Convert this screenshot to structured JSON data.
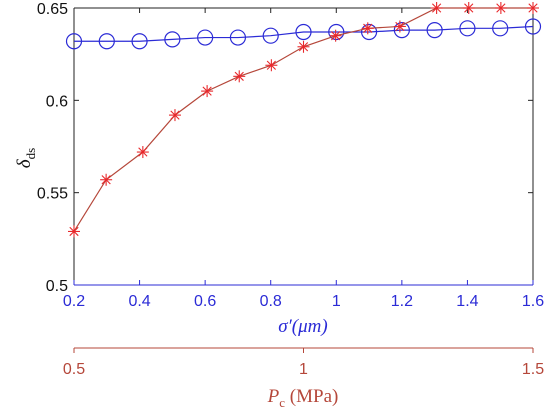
{
  "chart_data": {
    "type": "line",
    "ylabel_symbol": "δ",
    "ylabel_subscript": "ds",
    "xlabel_primary": "σ′(μm)",
    "xlabel_secondary_symbol": "P",
    "xlabel_secondary_subscript": "c",
    "xlabel_secondary_unit": " (MPa)",
    "xlim": [
      0.2,
      1.6
    ],
    "ylim": [
      0.5,
      0.65
    ],
    "x2lim": [
      0.5,
      1.5
    ],
    "xticks": [
      "0.2",
      "0.4",
      "0.6",
      "0.8",
      "1",
      "1.2",
      "1.4",
      "1.6"
    ],
    "yticks": [
      "0.5",
      "0.55",
      "0.6",
      "0.65"
    ],
    "x2ticks": [
      "0.5",
      "1",
      "1.5"
    ],
    "colors": {
      "blue": "#2b2bd6",
      "red": "#b5473a",
      "star": "#e8282b",
      "axis": "#222222"
    },
    "series": [
      {
        "marker": "circle",
        "axis": "bottom",
        "x": [
          0.2,
          0.3,
          0.4,
          0.5,
          0.6,
          0.7,
          0.8,
          0.9,
          1.0,
          1.1,
          1.2,
          1.3,
          1.4,
          1.5,
          1.6
        ],
        "y": [
          0.632,
          0.632,
          0.632,
          0.633,
          0.634,
          0.634,
          0.635,
          0.637,
          0.637,
          0.637,
          0.638,
          0.638,
          0.639,
          0.639,
          0.64
        ]
      },
      {
        "marker": "star",
        "axis": "top",
        "x": [
          0.5,
          0.57,
          0.65,
          0.72,
          0.79,
          0.86,
          0.93,
          1.0,
          1.07,
          1.14,
          1.21,
          1.29,
          1.36,
          1.43,
          1.5
        ],
        "y": [
          0.529,
          0.557,
          0.572,
          0.592,
          0.605,
          0.613,
          0.619,
          0.629,
          0.635,
          0.639,
          0.64,
          0.65,
          0.65,
          0.65,
          0.65
        ]
      }
    ]
  }
}
